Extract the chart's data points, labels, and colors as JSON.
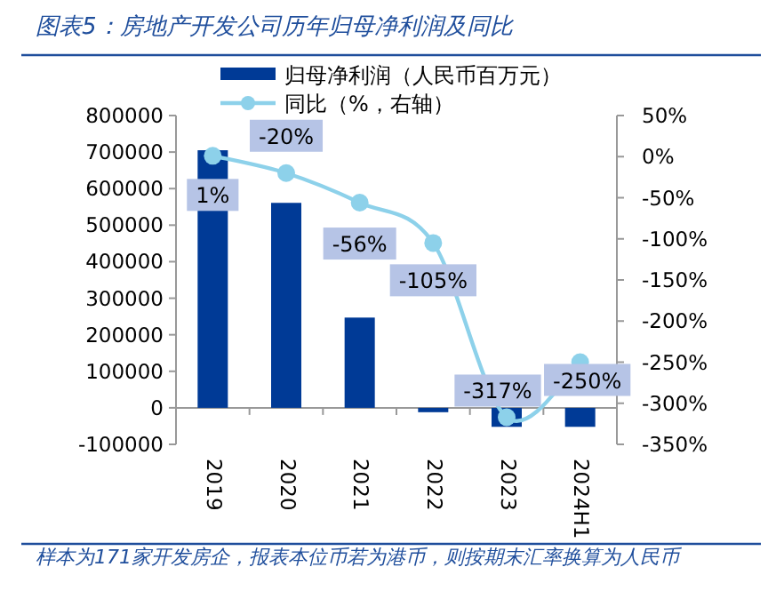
{
  "chart_data": {
    "type": "bar",
    "title": "图表5：房地产开发公司历年归母净利润及同比",
    "categories": [
      "2019",
      "2020",
      "2021",
      "2022",
      "2023",
      "2024H1"
    ],
    "series": [
      {
        "name": "归母净利润（人民币百万元）",
        "color": "#003a96",
        "values": [
          705000,
          561000,
          247000,
          -12000,
          -52000,
          -52000
        ]
      },
      {
        "name": "同比（%，右轴）",
        "type": "line",
        "axis": "y2",
        "color": "#8dd1ea",
        "values": [
          1,
          -20,
          -56,
          -105,
          -317,
          -250
        ],
        "value_labels": [
          "1%",
          "-20%",
          "-56%",
          "-105%",
          "-317%",
          "-250%"
        ]
      }
    ],
    "marker": "circle",
    "ylim": [
      -100000,
      800000
    ],
    "yticks": [
      -100000,
      0,
      100000,
      200000,
      300000,
      400000,
      500000,
      600000,
      700000,
      800000
    ],
    "y2lim": [
      -350,
      50
    ],
    "y2ticks": [
      {
        "value": 50,
        "label": "50%"
      },
      {
        "value": 0,
        "label": "0%"
      },
      {
        "value": -50,
        "label": "-50%"
      },
      {
        "value": -100,
        "label": "-100%"
      },
      {
        "value": -150,
        "label": "-150%"
      },
      {
        "value": -200,
        "label": "-200%"
      },
      {
        "value": -250,
        "label": "-250%"
      },
      {
        "value": -300,
        "label": "-300%"
      },
      {
        "value": -350,
        "label": "-350%"
      }
    ],
    "legend": "top",
    "grid": false,
    "annotations": [
      "样本为171家开发房企，报表本位币若为港币，则按期末汇率换算为人民币"
    ]
  }
}
